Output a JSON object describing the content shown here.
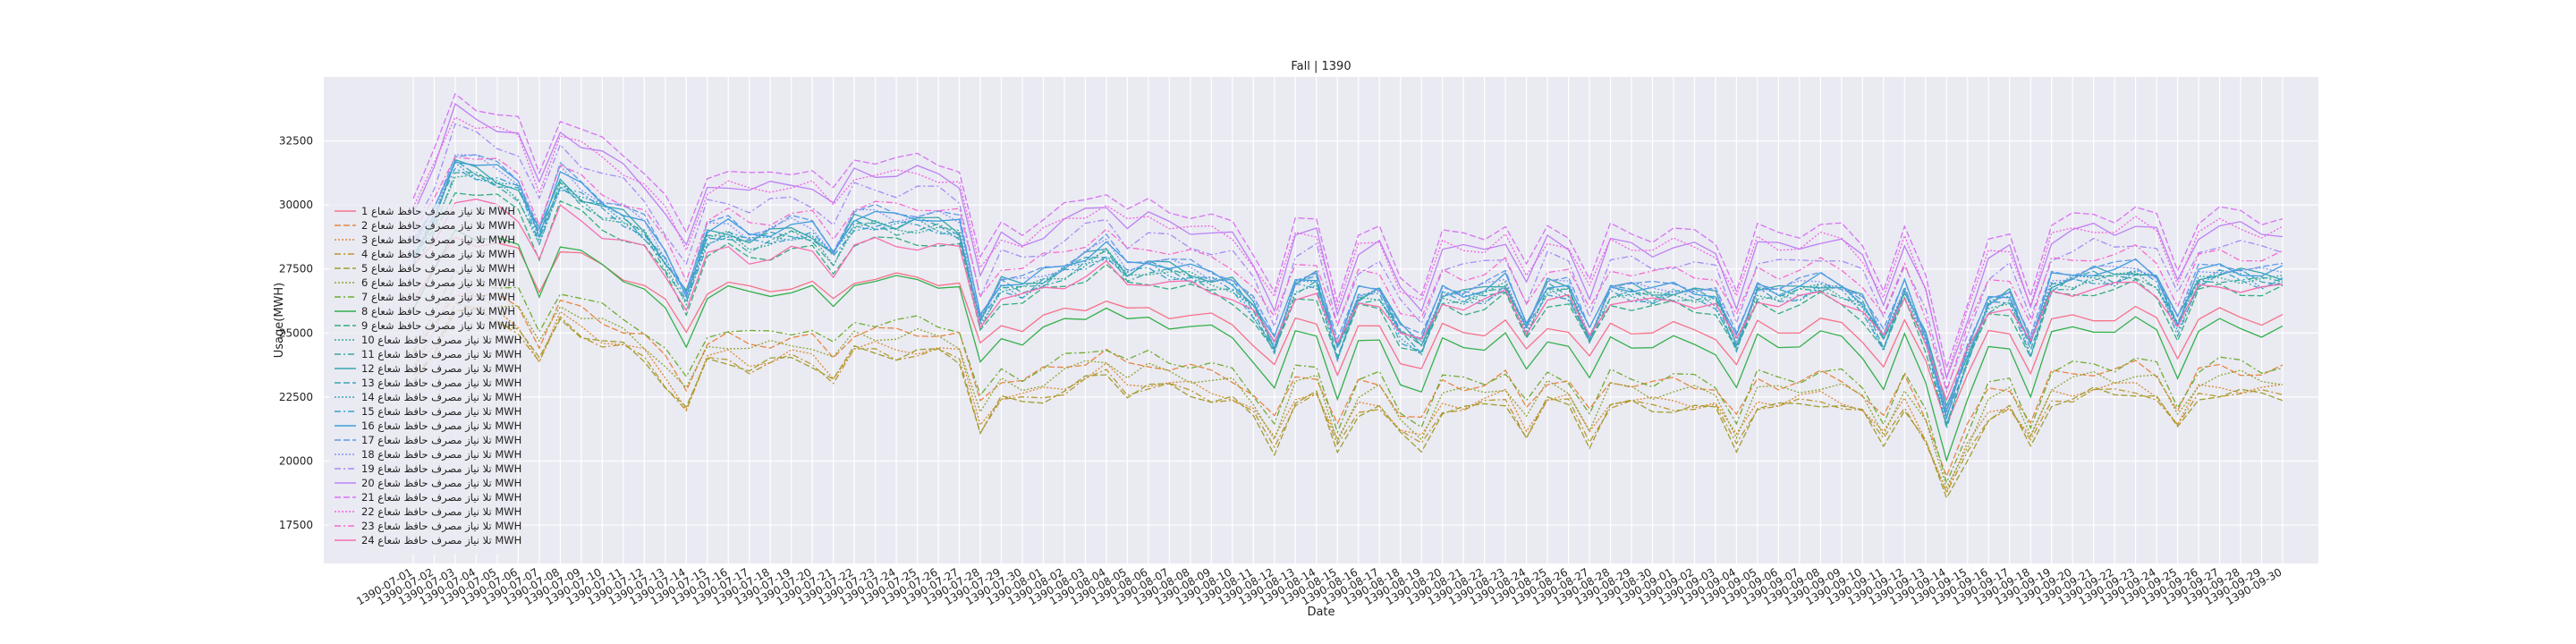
{
  "chart_data": {
    "type": "line",
    "title": "Fall | 1390",
    "xlabel": "Date",
    "ylabel": "Usage(MWH)",
    "ylim": [
      16000,
      35000
    ],
    "yticks": [
      17500,
      20000,
      22500,
      25000,
      27500,
      30000,
      32500
    ],
    "grid": true,
    "legend_position": "left",
    "x": [
      "1390-07-01",
      "1390-07-02",
      "1390-07-03",
      "1390-07-04",
      "1390-07-05",
      "1390-07-06",
      "1390-07-07",
      "1390-07-08",
      "1390-07-09",
      "1390-07-10",
      "1390-07-11",
      "1390-07-12",
      "1390-07-13",
      "1390-07-14",
      "1390-07-15",
      "1390-07-16",
      "1390-07-17",
      "1390-07-18",
      "1390-07-19",
      "1390-07-20",
      "1390-07-21",
      "1390-07-22",
      "1390-07-23",
      "1390-07-24",
      "1390-07-25",
      "1390-07-26",
      "1390-07-27",
      "1390-07-28",
      "1390-07-29",
      "1390-07-30",
      "1390-08-01",
      "1390-08-02",
      "1390-08-03",
      "1390-08-04",
      "1390-08-05",
      "1390-08-06",
      "1390-08-07",
      "1390-08-08",
      "1390-08-09",
      "1390-08-10",
      "1390-08-11",
      "1390-08-12",
      "1390-08-13",
      "1390-08-14",
      "1390-08-15",
      "1390-08-16",
      "1390-08-17",
      "1390-08-18",
      "1390-08-19",
      "1390-08-20",
      "1390-08-21",
      "1390-08-22",
      "1390-08-23",
      "1390-08-24",
      "1390-08-25",
      "1390-08-26",
      "1390-08-27",
      "1390-08-28",
      "1390-08-29",
      "1390-08-30",
      "1390-09-01",
      "1390-09-02",
      "1390-09-03",
      "1390-09-04",
      "1390-09-05",
      "1390-09-06",
      "1390-09-07",
      "1390-09-08",
      "1390-09-09",
      "1390-09-10",
      "1390-09-11",
      "1390-09-12",
      "1390-09-13",
      "1390-09-14",
      "1390-09-15",
      "1390-09-16",
      "1390-09-17",
      "1390-09-18",
      "1390-09-19",
      "1390-09-20",
      "1390-09-21",
      "1390-09-22",
      "1390-09-23",
      "1390-09-24",
      "1390-09-25",
      "1390-09-26",
      "1390-09-27",
      "1390-09-28",
      "1390-09-29",
      "1390-09-30"
    ],
    "template": [
      0.62,
      0.78,
      1.0,
      0.97,
      0.94,
      0.9,
      0.7,
      0.93,
      0.87,
      0.82,
      0.78,
      0.72,
      0.6,
      0.45,
      0.7,
      0.72,
      0.68,
      0.7,
      0.72,
      0.71,
      0.62,
      0.76,
      0.76,
      0.75,
      0.76,
      0.75,
      0.72,
      0.35,
      0.5,
      0.48,
      0.52,
      0.56,
      0.6,
      0.64,
      0.55,
      0.58,
      0.56,
      0.54,
      0.52,
      0.5,
      0.4,
      0.24,
      0.5,
      0.52,
      0.22,
      0.45,
      0.47,
      0.3,
      0.24,
      0.46,
      0.45,
      0.46,
      0.5,
      0.32,
      0.49,
      0.47,
      0.28,
      0.48,
      0.47,
      0.45,
      0.47,
      0.46,
      0.44,
      0.25,
      0.48,
      0.46,
      0.47,
      0.5,
      0.48,
      0.42,
      0.26,
      0.48,
      0.28,
      -0.05,
      0.2,
      0.42,
      0.45,
      0.24,
      0.5,
      0.52,
      0.54,
      0.53,
      0.56,
      0.52,
      0.33,
      0.52,
      0.55,
      0.54,
      0.52,
      0.53
    ],
    "series": [
      {
        "name": "تلا نیاز مصرف حافظ شعاع 1 MWH",
        "color": "#f77189",
        "dash": "6,0",
        "base": 22500,
        "amp": 6800
      },
      {
        "name": "تلا نیاز مصرف حافظ شعاع 2 MWH",
        "color": "#e88543",
        "dash": "7,3",
        "base": 20400,
        "amp": 6800
      },
      {
        "name": "تلا نیاز مصرف حافظ شعاع 3 MWH",
        "color": "#dc8932",
        "dash": "2,2",
        "base": 19600,
        "amp": 7000
      },
      {
        "name": "تلا نیاز مصرف حافظ شعاع 4 MWH",
        "color": "#bb9832",
        "dash": "7,3,2,3",
        "base": 19400,
        "amp": 7000
      },
      {
        "name": "تلا نیاز مصرف حافظ شعاع 5 MWH",
        "color": "#a09e31",
        "dash": "7,3",
        "base": 19200,
        "amp": 7300
      },
      {
        "name": "تلا نیاز مصرف حافظ شعاع 6 MWH",
        "color": "#8da631",
        "dash": "2,2",
        "base": 19800,
        "amp": 7400
      },
      {
        "name": "تلا نیاز مصرف حافظ شعاع 7 MWH",
        "color": "#6fac31",
        "dash": "7,3,2,3",
        "base": 20200,
        "amp": 7600
      },
      {
        "name": "تلا نیاز مصرف حافظ شعاع 8 MWH",
        "color": "#33b04a",
        "dash": "6,0",
        "base": 21200,
        "amp": 8400
      },
      {
        "name": "تلا نیاز مصرف حافظ شعاع 9 MWH",
        "color": "#35ad7c",
        "dash": "7,3",
        "base": 22500,
        "amp": 8700
      },
      {
        "name": "تلا نیاز مصرف حافظ شعاع 10 MWH",
        "color": "#36aa93",
        "dash": "2,2",
        "base": 22800,
        "amp": 9000
      },
      {
        "name": "تلا نیاز مصرف حافظ شعاع 11 MWH",
        "color": "#37a8a2",
        "dash": "7,3,2,3",
        "base": 22700,
        "amp": 9100
      },
      {
        "name": "تلا نیاز مصرف حافظ شعاع 12 MWH",
        "color": "#38a7ad",
        "dash": "6,0",
        "base": 22900,
        "amp": 9200
      },
      {
        "name": "تلا نیاز مصرف حافظ شعاع 13 MWH",
        "color": "#39a5b7",
        "dash": "7,3",
        "base": 22700,
        "amp": 9300
      },
      {
        "name": "تلا نیاز مصرف حافظ شعاع 14 MWH",
        "color": "#3aa3c1",
        "dash": "2,2",
        "base": 22600,
        "amp": 9400
      },
      {
        "name": "تلا نیاز مصرف حافظ شعاع 15 MWH",
        "color": "#3ba1cd",
        "dash": "7,3,2,3",
        "base": 22500,
        "amp": 9500
      },
      {
        "name": "تلا نیاز مصرف حافظ شعاع 16 MWH",
        "color": "#3d9edb",
        "dash": "6,0",
        "base": 22800,
        "amp": 9600
      },
      {
        "name": "تلا نیاز مصرف حافظ شعاع 17 MWH",
        "color": "#5e9ae7",
        "dash": "7,3",
        "base": 22900,
        "amp": 9700
      },
      {
        "name": "تلا نیاز مصرف حافظ شعاع 18 MWH",
        "color": "#8496f4",
        "dash": "2,2",
        "base": 22700,
        "amp": 9800
      },
      {
        "name": "تلا نیاز مصرف حافظ شعاع 19 MWH",
        "color": "#a48bf4",
        "dash": "7,3,2,3",
        "base": 23600,
        "amp": 9900
      },
      {
        "name": "تلا نیاز مصرف حافظ شعاع 20 MWH",
        "color": "#bc81f4",
        "dash": "6,0",
        "base": 24200,
        "amp": 10000
      },
      {
        "name": "تلا نیاز مصرف حافظ شعاع 21 MWH",
        "color": "#d673f3",
        "dash": "7,3",
        "base": 24800,
        "amp": 9900
      },
      {
        "name": "تلا نیاز مصرف حافظ شعاع 22 MWH",
        "color": "#f062e4",
        "dash": "2,2",
        "base": 24500,
        "amp": 9500
      },
      {
        "name": "تلا نیاز مصرف حافظ شعاع 23 MWH",
        "color": "#f56bcd",
        "dash": "7,3,2,3",
        "base": 23800,
        "amp": 8800
      },
      {
        "name": "تلا نیاز مصرف حافظ شعاع 24 MWH",
        "color": "#f66eaf",
        "dash": "6,0",
        "base": 23200,
        "amp": 7600
      }
    ]
  }
}
